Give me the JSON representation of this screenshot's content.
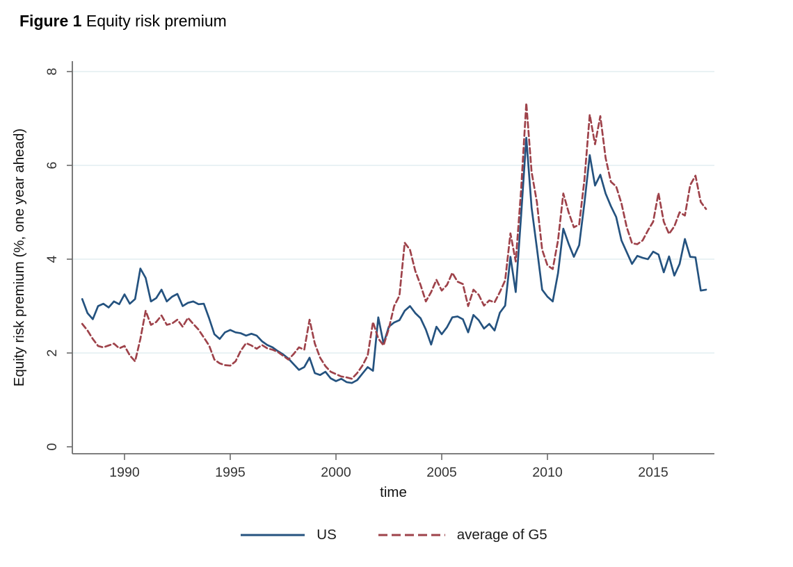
{
  "figure_title": {
    "prefix": "Figure 1",
    "text": "Equity risk premium"
  },
  "legend": {
    "items": [
      {
        "label": "US",
        "color": "#24527f",
        "style": "solid"
      },
      {
        "label": "average of G5",
        "color": "#9e424a",
        "style": "dashed"
      }
    ]
  },
  "colors": {
    "us_line": "#24527f",
    "g5_line": "#9e424a",
    "gridline": "#e2edf0",
    "axis": "#6b6b6b",
    "tick_text": "#333333"
  },
  "chart_data": {
    "type": "line",
    "title": "Figure 1 Equity risk premium",
    "xlabel": "time",
    "ylabel": "Equity risk premium (%, one year ahead)",
    "xlim": [
      1987.5,
      2017.9
    ],
    "ylim": [
      0,
      8
    ],
    "x_ticks": [
      1990,
      1995,
      2000,
      2005,
      2010,
      2015
    ],
    "y_ticks": [
      0,
      2,
      4,
      6,
      8
    ],
    "grid": "horizontal gridlines at y = 2,4,6,8",
    "legend_position": "bottom-center",
    "x": [
      1988.0,
      1988.25,
      1988.5,
      1988.75,
      1989.0,
      1989.25,
      1989.5,
      1989.75,
      1990.0,
      1990.25,
      1990.5,
      1990.75,
      1991.0,
      1991.25,
      1991.5,
      1991.75,
      1992.0,
      1992.25,
      1992.5,
      1992.75,
      1993.0,
      1993.25,
      1993.5,
      1993.75,
      1994.0,
      1994.25,
      1994.5,
      1994.75,
      1995.0,
      1995.25,
      1995.5,
      1995.75,
      1996.0,
      1996.25,
      1996.5,
      1996.75,
      1997.0,
      1997.25,
      1997.5,
      1997.75,
      1998.0,
      1998.25,
      1998.5,
      1998.75,
      1999.0,
      1999.25,
      1999.5,
      1999.75,
      2000.0,
      2000.25,
      2000.5,
      2000.75,
      2001.0,
      2001.25,
      2001.5,
      2001.75,
      2002.0,
      2002.25,
      2002.5,
      2002.75,
      2003.0,
      2003.25,
      2003.5,
      2003.75,
      2004.0,
      2004.25,
      2004.5,
      2004.75,
      2005.0,
      2005.25,
      2005.5,
      2005.75,
      2006.0,
      2006.25,
      2006.5,
      2006.75,
      2007.0,
      2007.25,
      2007.5,
      2007.75,
      2008.0,
      2008.25,
      2008.5,
      2008.75,
      2009.0,
      2009.25,
      2009.5,
      2009.75,
      2010.0,
      2010.25,
      2010.5,
      2010.75,
      2011.0,
      2011.25,
      2011.5,
      2011.75,
      2012.0,
      2012.25,
      2012.5,
      2012.75,
      2013.0,
      2013.25,
      2013.5,
      2013.75,
      2014.0,
      2014.25,
      2014.5,
      2014.75,
      2015.0,
      2015.25,
      2015.5,
      2015.75,
      2016.0,
      2016.25,
      2016.5,
      2016.75,
      2017.0,
      2017.25,
      2017.5
    ],
    "series": [
      {
        "name": "US",
        "color": "#24527f",
        "style": "solid",
        "values": [
          3.15,
          2.85,
          2.72,
          3.0,
          3.05,
          2.97,
          3.1,
          3.04,
          3.25,
          3.05,
          3.15,
          3.8,
          3.6,
          3.1,
          3.17,
          3.35,
          3.1,
          3.2,
          3.26,
          3.0,
          3.07,
          3.1,
          3.04,
          3.05,
          2.74,
          2.4,
          2.3,
          2.44,
          2.49,
          2.44,
          2.42,
          2.37,
          2.41,
          2.37,
          2.25,
          2.17,
          2.12,
          2.04,
          1.97,
          1.88,
          1.76,
          1.64,
          1.7,
          1.9,
          1.57,
          1.53,
          1.6,
          1.46,
          1.4,
          1.45,
          1.38,
          1.36,
          1.42,
          1.56,
          1.7,
          1.62,
          2.76,
          2.2,
          2.56,
          2.65,
          2.7,
          2.9,
          3.0,
          2.85,
          2.74,
          2.5,
          2.18,
          2.56,
          2.4,
          2.55,
          2.76,
          2.78,
          2.72,
          2.44,
          2.81,
          2.7,
          2.52,
          2.62,
          2.48,
          2.86,
          3.01,
          4.05,
          3.3,
          4.9,
          6.59,
          5.1,
          4.24,
          3.35,
          3.2,
          3.1,
          3.7,
          4.65,
          4.33,
          4.05,
          4.3,
          5.2,
          6.22,
          5.57,
          5.8,
          5.4,
          5.13,
          4.9,
          4.4,
          4.15,
          3.9,
          4.07,
          4.03,
          4.0,
          4.16,
          4.1,
          3.72,
          4.06,
          3.65,
          3.9,
          4.43,
          4.05,
          4.04,
          3.33,
          3.35
        ]
      },
      {
        "name": "average of G5",
        "color": "#9e424a",
        "style": "dashed",
        "values": [
          2.62,
          2.48,
          2.3,
          2.15,
          2.12,
          2.16,
          2.2,
          2.1,
          2.15,
          1.95,
          1.82,
          2.3,
          2.9,
          2.6,
          2.66,
          2.8,
          2.6,
          2.63,
          2.71,
          2.56,
          2.75,
          2.62,
          2.5,
          2.33,
          2.16,
          1.86,
          1.78,
          1.74,
          1.73,
          1.82,
          2.05,
          2.21,
          2.16,
          2.09,
          2.17,
          2.1,
          2.07,
          2.02,
          1.94,
          1.86,
          1.98,
          2.12,
          2.07,
          2.71,
          2.2,
          1.9,
          1.72,
          1.6,
          1.55,
          1.5,
          1.48,
          1.45,
          1.57,
          1.73,
          1.95,
          2.66,
          2.31,
          2.16,
          2.52,
          3.0,
          3.22,
          4.35,
          4.2,
          3.75,
          3.45,
          3.1,
          3.3,
          3.56,
          3.33,
          3.45,
          3.71,
          3.52,
          3.47,
          3.0,
          3.35,
          3.24,
          3.01,
          3.12,
          3.08,
          3.3,
          3.55,
          4.55,
          3.95,
          5.45,
          7.33,
          5.86,
          5.22,
          4.2,
          3.87,
          3.79,
          4.4,
          5.4,
          5.0,
          4.68,
          4.74,
          5.7,
          7.08,
          6.45,
          7.05,
          6.16,
          5.65,
          5.55,
          5.19,
          4.68,
          4.34,
          4.32,
          4.4,
          4.61,
          4.8,
          5.41,
          4.8,
          4.54,
          4.7,
          5.0,
          4.93,
          5.58,
          5.78,
          5.22,
          5.07
        ]
      }
    ]
  }
}
